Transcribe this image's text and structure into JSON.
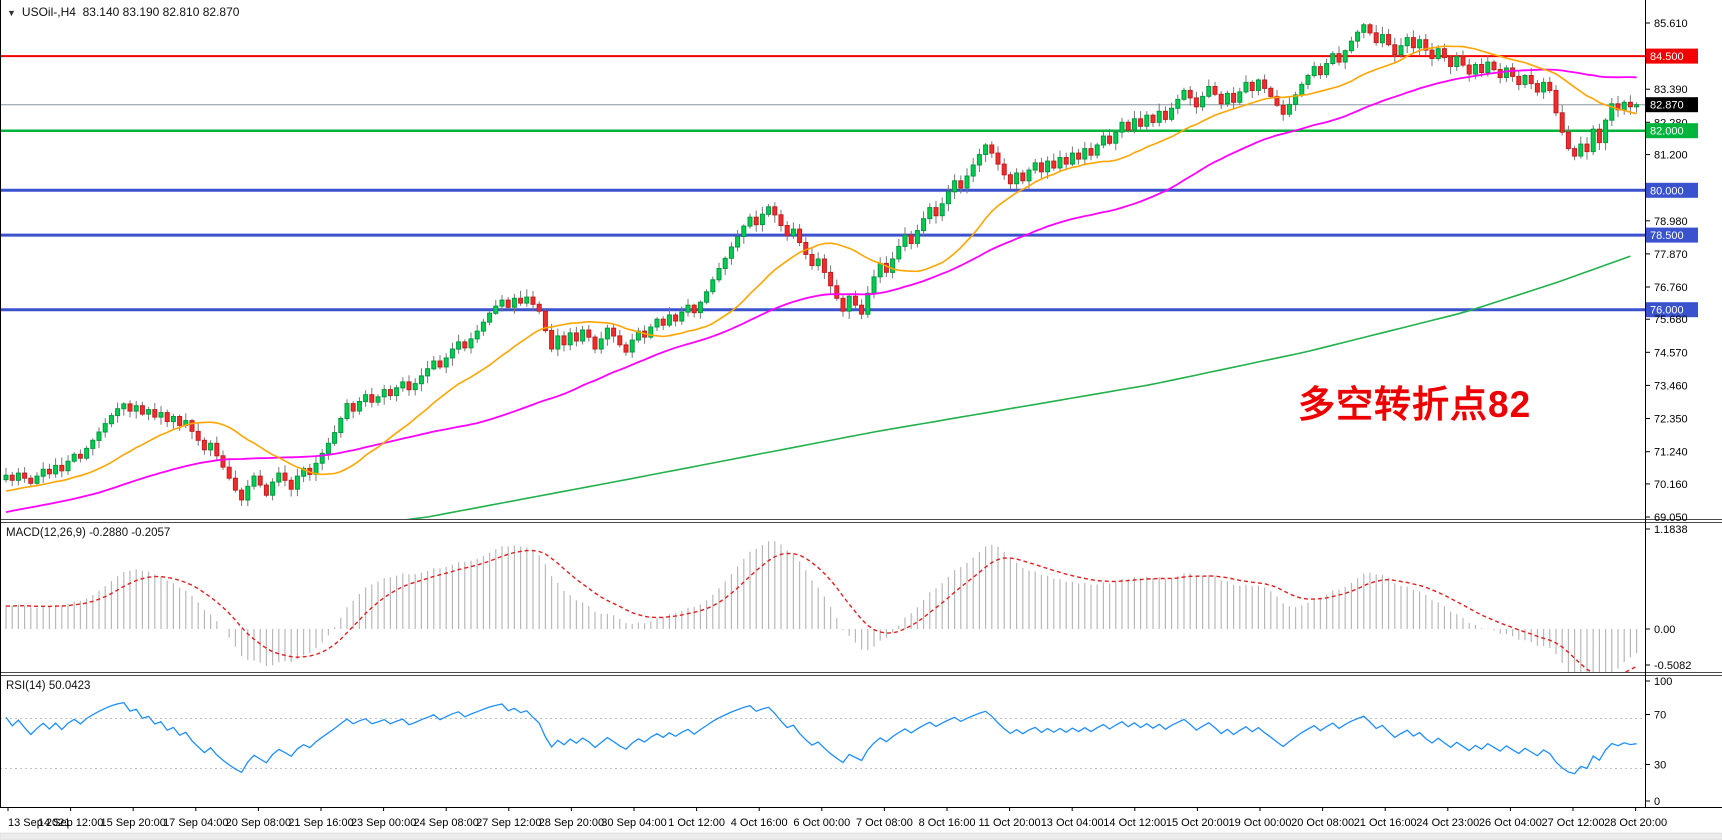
{
  "title": {
    "symbol_period": "USOil-,H4",
    "ohlc": "83.140 83.190 82.810 82.870"
  },
  "annotation": {
    "text": "多空转折点82",
    "color": "#ee0000"
  },
  "colors": {
    "candle_up": "#00cc52",
    "candle_up_stroke": "#00993d",
    "candle_down": "#f22c2c",
    "candle_down_stroke": "#c41d1d",
    "ma_fast": "#ffa500",
    "ma_mid": "#ff00ff",
    "ma_slow": "#22b14c",
    "level_red": "#f40000",
    "level_green": "#00b43c",
    "level_blue": "#3a52ce",
    "current_price_line": "#8896a0",
    "macd_bar": "#b9b9b9",
    "macd_signal": "#e02020",
    "rsi_line": "#1f8fff",
    "rsi_dash": "#bfbfbf",
    "axis_text": "#000000"
  },
  "price_axis": {
    "labels": [
      {
        "text": "85.610",
        "price": 85.61,
        "style": "plain"
      },
      {
        "text": "84.500",
        "price": 84.5,
        "style": "red"
      },
      {
        "text": "83.390",
        "price": 83.39,
        "style": "plain"
      },
      {
        "text": "82.870",
        "price": 82.87,
        "style": "black"
      },
      {
        "text": "82.280",
        "price": 82.28,
        "style": "plain"
      },
      {
        "text": "82.000",
        "price": 82.0,
        "style": "green"
      },
      {
        "text": "81.200",
        "price": 81.2,
        "style": "plain"
      },
      {
        "text": "80.000",
        "price": 80.0,
        "style": "blue"
      },
      {
        "text": "78.980",
        "price": 78.98,
        "style": "plain"
      },
      {
        "text": "78.500",
        "price": 78.5,
        "style": "blue"
      },
      {
        "text": "77.870",
        "price": 77.87,
        "style": "plain"
      },
      {
        "text": "76.760",
        "price": 76.76,
        "style": "plain"
      },
      {
        "text": "76.000",
        "price": 76.0,
        "style": "blue"
      },
      {
        "text": "75.680",
        "price": 75.68,
        "style": "plain"
      },
      {
        "text": "74.570",
        "price": 74.57,
        "style": "plain"
      },
      {
        "text": "73.460",
        "price": 73.46,
        "style": "plain"
      },
      {
        "text": "72.350",
        "price": 72.35,
        "style": "plain"
      },
      {
        "text": "71.240",
        "price": 71.24,
        "style": "plain"
      },
      {
        "text": "70.160",
        "price": 70.16,
        "style": "plain"
      },
      {
        "text": "69.050",
        "price": 69.05,
        "style": "plain"
      }
    ]
  },
  "time_axis": [
    "13 Sep 2021",
    "14 Sep 12:00",
    "15 Sep 20:00",
    "17 Sep 04:00",
    "20 Sep 08:00",
    "21 Sep 16:00",
    "23 Sep 00:00",
    "24 Sep 08:00",
    "27 Sep 12:00",
    "28 Sep 20:00",
    "30 Sep 04:00",
    "1 Oct 12:00",
    "4 Oct 16:00",
    "6 Oct 00:00",
    "7 Oct 08:00",
    "8 Oct 16:00",
    "11 Oct 20:00",
    "13 Oct 04:00",
    "14 Oct 12:00",
    "15 Oct 20:00",
    "19 Oct 00:00",
    "20 Oct 08:00",
    "21 Oct 16:00",
    "24 Oct 23:00",
    "26 Oct 04:00",
    "27 Oct 12:00",
    "28 Oct 20:00"
  ],
  "indicators": {
    "macd": {
      "label": "MACD(12,26,9)",
      "values_text": "-0.2880 -0.2057",
      "axis_labels": [
        "1.1838",
        "0.00",
        "-0.5082"
      ],
      "fast": 12,
      "slow": 26,
      "signal": 9
    },
    "rsi": {
      "label": "RSI(14)",
      "value_text": "50.0423",
      "axis_labels": [
        "100",
        "70",
        "30",
        "0"
      ],
      "period": 14,
      "levels": [
        70,
        30
      ]
    }
  },
  "chart_data": {
    "type": "candlestick",
    "symbol": "USOil-",
    "timeframe": "H4",
    "y_axis": {
      "min": 69.05,
      "max": 85.61,
      "tick_step": 1.11
    },
    "levels": [
      {
        "price": 84.5,
        "color": "level_red",
        "width": 2
      },
      {
        "price": 82.87,
        "color": "current_price_line",
        "width": 1
      },
      {
        "price": 82.0,
        "color": "level_green",
        "width": 2.5
      },
      {
        "price": 80.0,
        "color": "level_blue",
        "width": 3
      },
      {
        "price": 78.5,
        "color": "level_blue",
        "width": 3
      },
      {
        "price": 76.0,
        "color": "level_blue",
        "width": 3
      }
    ],
    "current_price": 82.87,
    "open_first": 70.3,
    "wick_max": 0.27,
    "history_seed": {
      "len": 60,
      "start": 67.9,
      "end": 70.25
    },
    "closes": [
      70.45,
      70.28,
      70.52,
      70.35,
      70.18,
      70.42,
      70.65,
      70.5,
      70.78,
      70.6,
      70.92,
      71.15,
      71.02,
      71.35,
      71.62,
      71.9,
      72.18,
      72.45,
      72.68,
      72.84,
      72.6,
      72.78,
      72.5,
      72.65,
      72.4,
      72.55,
      72.25,
      72.42,
      72.12,
      72.28,
      71.92,
      71.62,
      71.3,
      71.52,
      71.1,
      70.72,
      70.35,
      69.95,
      69.62,
      70.08,
      70.42,
      70.12,
      69.78,
      70.22,
      70.52,
      70.28,
      69.98,
      70.42,
      70.68,
      70.48,
      70.85,
      71.18,
      71.52,
      71.88,
      72.35,
      72.85,
      72.6,
      72.92,
      73.15,
      72.9,
      73.08,
      73.32,
      73.12,
      73.38,
      73.58,
      73.32,
      73.52,
      73.78,
      74.02,
      74.28,
      74.08,
      74.38,
      74.68,
      74.92,
      74.72,
      75.02,
      75.28,
      75.58,
      75.88,
      76.12,
      76.32,
      76.08,
      76.38,
      76.22,
      76.42,
      76.18,
      75.95,
      75.3,
      74.68,
      75.12,
      74.82,
      75.22,
      74.95,
      75.32,
      75.08,
      74.68,
      75.02,
      75.38,
      75.12,
      74.82,
      74.58,
      74.98,
      75.28,
      75.08,
      75.42,
      75.68,
      75.48,
      75.82,
      75.62,
      75.92,
      76.15,
      75.9,
      76.25,
      76.6,
      77.0,
      77.38,
      77.72,
      78.1,
      78.45,
      78.8,
      79.1,
      78.85,
      79.2,
      79.45,
      79.18,
      78.82,
      78.48,
      78.7,
      78.25,
      77.85,
      77.48,
      77.7,
      77.25,
      76.8,
      76.38,
      75.95,
      76.45,
      76.15,
      75.85,
      76.55,
      77.1,
      77.55,
      77.25,
      77.7,
      78.12,
      78.5,
      78.22,
      78.65,
      79.05,
      79.42,
      79.15,
      79.55,
      79.95,
      80.32,
      80.08,
      80.48,
      80.85,
      81.2,
      81.52,
      81.25,
      80.88,
      80.52,
      80.22,
      80.58,
      80.32,
      80.68,
      80.92,
      80.62,
      80.98,
      80.75,
      81.1,
      80.88,
      81.25,
      81.05,
      81.4,
      81.18,
      81.52,
      81.82,
      81.58,
      81.95,
      82.28,
      82.02,
      82.4,
      82.15,
      82.52,
      82.28,
      82.65,
      82.38,
      82.75,
      83.05,
      83.35,
      83.1,
      82.8,
      83.15,
      83.48,
      83.22,
      82.9,
      83.25,
      82.95,
      83.3,
      83.62,
      83.35,
      83.7,
      83.42,
      83.15,
      82.85,
      82.55,
      82.88,
      83.2,
      83.55,
      83.85,
      84.15,
      83.88,
      84.25,
      84.58,
      84.3,
      84.68,
      85.0,
      85.3,
      85.55,
      85.28,
      84.95,
      85.22,
      84.88,
      84.55,
      84.85,
      85.12,
      84.78,
      85.05,
      84.7,
      84.42,
      84.75,
      84.45,
      84.15,
      84.48,
      84.2,
      83.9,
      84.22,
      83.95,
      84.3,
      84.05,
      83.78,
      84.1,
      83.82,
      83.55,
      83.85,
      83.58,
      83.3,
      83.62,
      83.35,
      82.6,
      81.95,
      81.4,
      81.15,
      81.55,
      81.3,
      82.05,
      81.6,
      82.35,
      82.9,
      82.7,
      82.95,
      82.8,
      82.87
    ],
    "moving_averages": {
      "orange_period": 20,
      "magenta_period": 55,
      "green_anchor_points": [
        [
          40,
          68.3
        ],
        [
          68,
          69.05
        ],
        [
          100,
          70.3
        ],
        [
          140,
          71.9
        ],
        [
          185,
          73.5
        ],
        [
          210,
          74.6
        ],
        [
          235,
          75.9
        ],
        [
          250,
          76.9
        ],
        [
          263,
          77.87
        ]
      ]
    }
  }
}
